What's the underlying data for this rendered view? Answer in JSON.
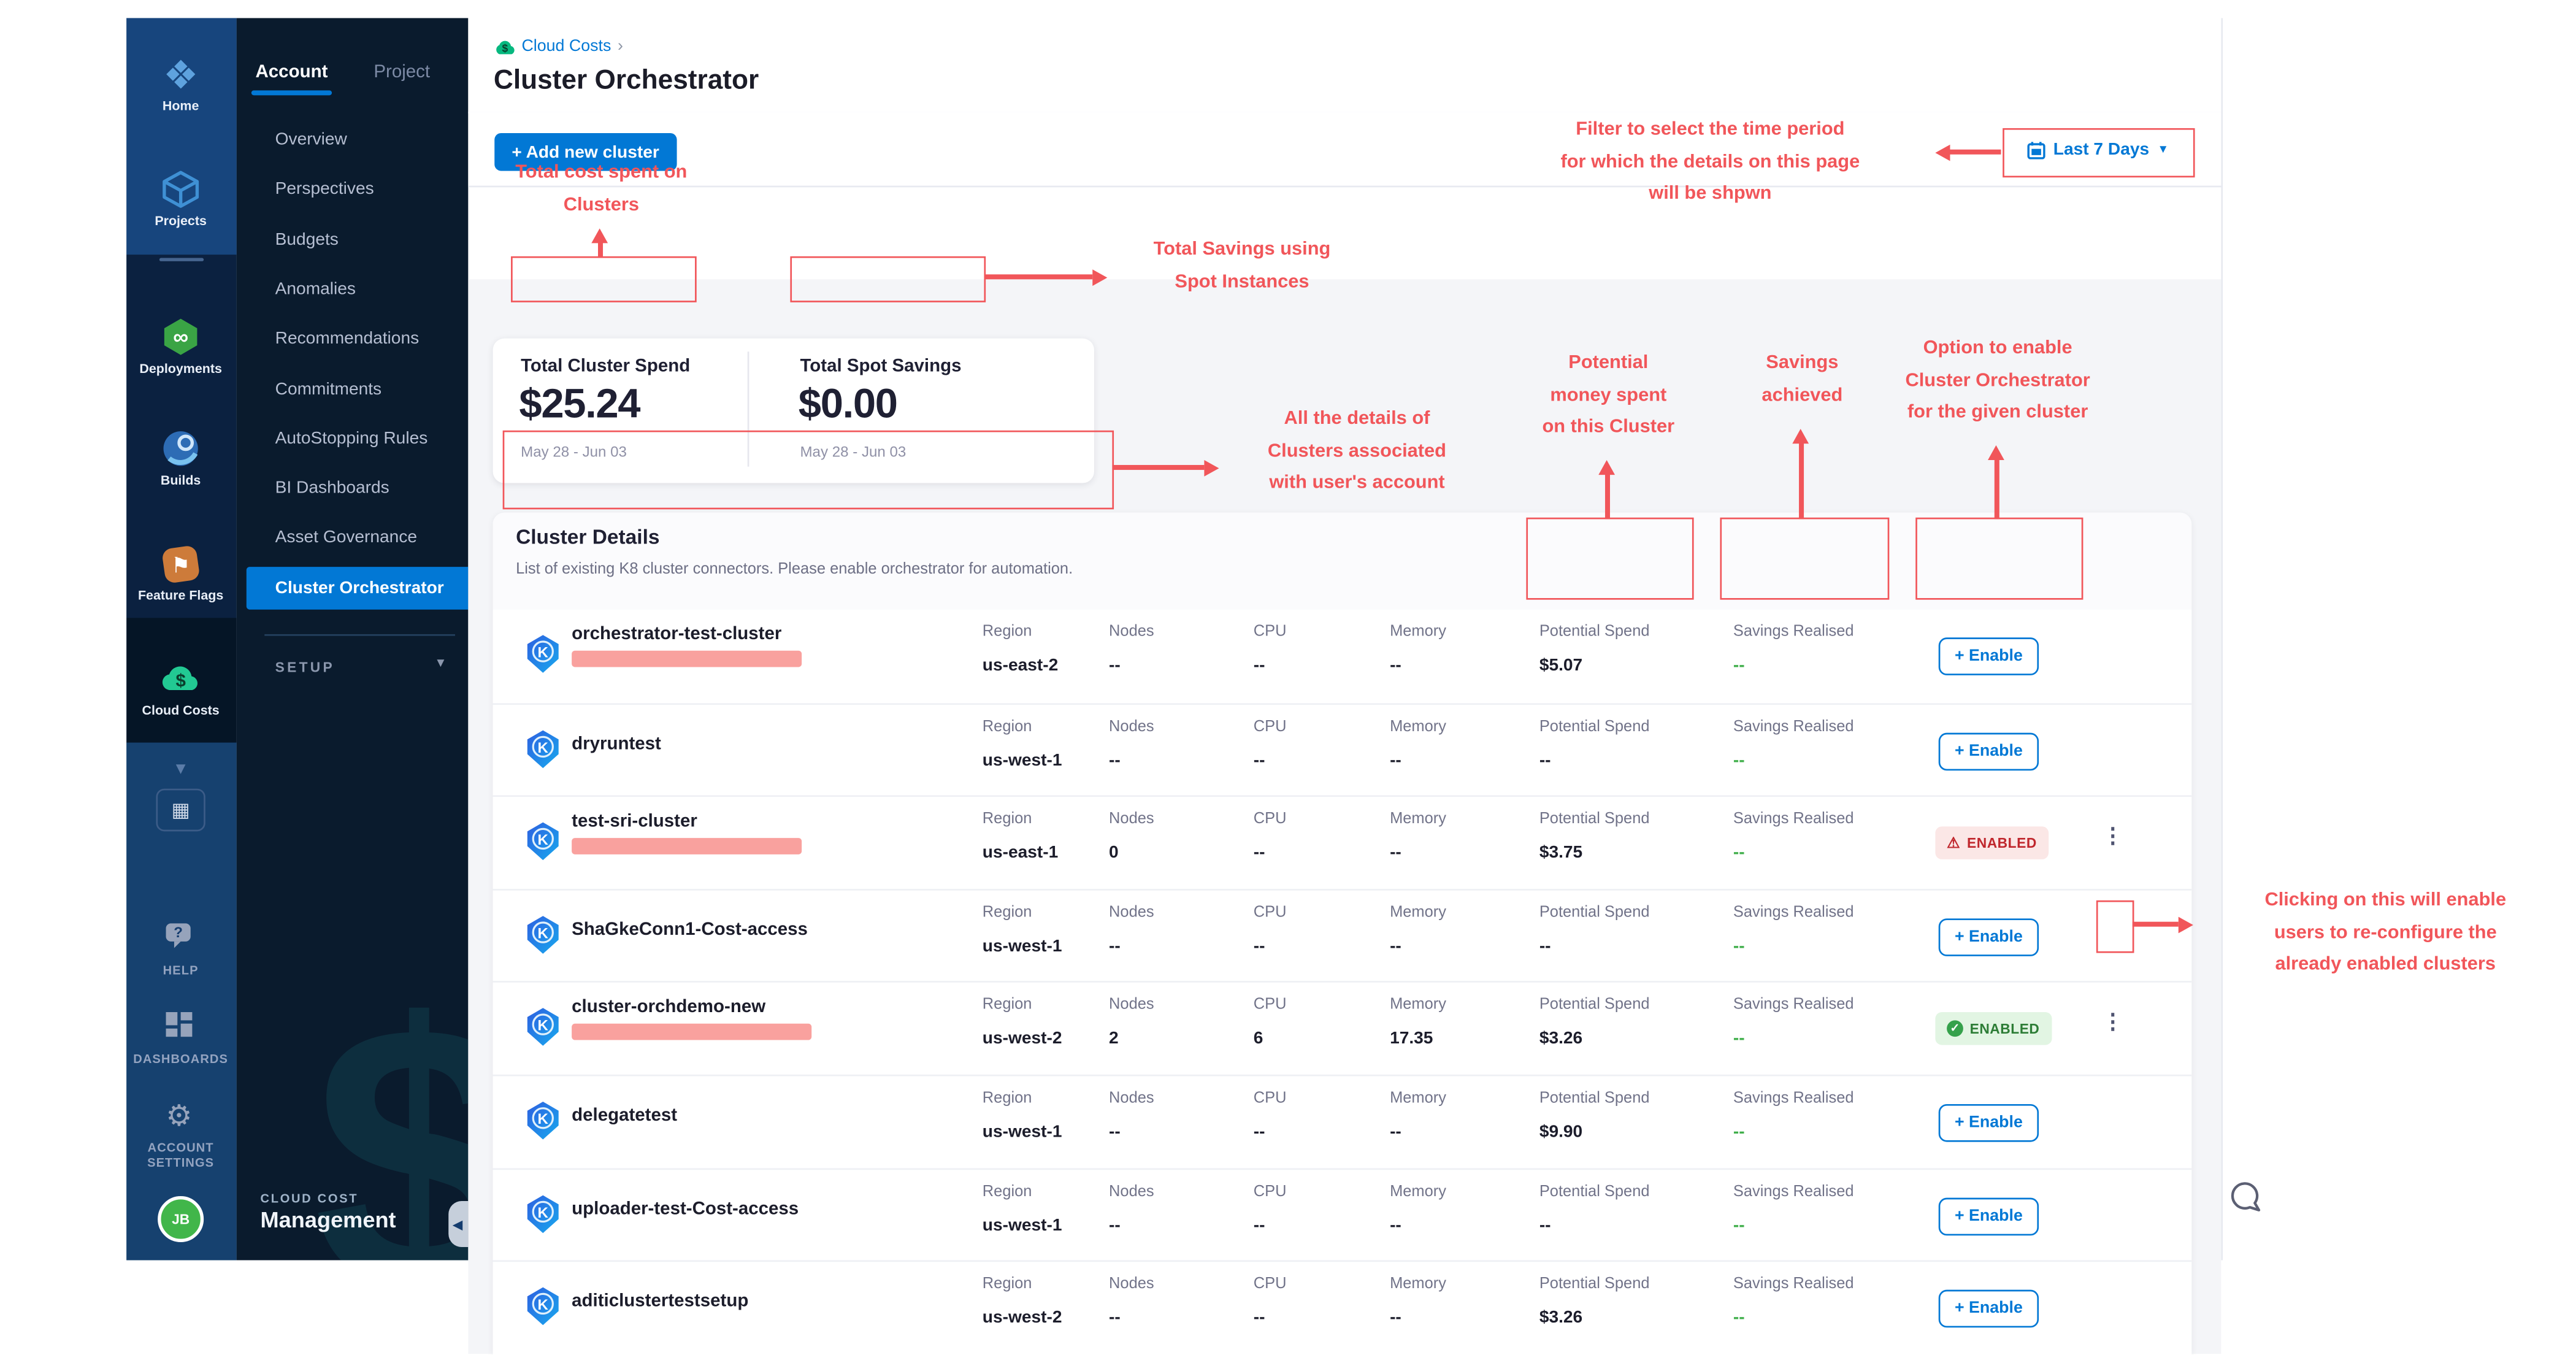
{
  "colors": {
    "accent": "#0278d5",
    "annotation_red": "#f1565a",
    "savings_green": "#3fae4a",
    "enabled_error_bg": "#fbe7e6",
    "enabled_error_text": "#c0272d",
    "enabled_ok_bg": "#e2f5e3",
    "enabled_ok_text": "#2d7d36",
    "rail_bg": "#143c6e",
    "sidebar_bg": "#0a1b2d"
  },
  "left_rail": {
    "modules": [
      {
        "icon": "harness-logo-icon",
        "label": "Home"
      },
      {
        "icon": "cube-icon",
        "label": "Projects"
      },
      {
        "icon": "infinity-hex-icon",
        "label": "Deployments"
      },
      {
        "icon": "ci-circle-icon",
        "label": "Builds"
      },
      {
        "icon": "flag-icon",
        "label": "Feature Flags"
      },
      {
        "icon": "cloud-dollar-icon",
        "label": "Cloud Costs"
      }
    ],
    "utility": [
      {
        "icon": "help-chat-icon",
        "label": "HELP"
      },
      {
        "icon": "dashboards-icon",
        "label": "DASHBOARDS"
      },
      {
        "icon": "gear-icon",
        "label": "ACCOUNT\nSETTINGS"
      }
    ],
    "avatar": "JB"
  },
  "sidebar": {
    "tabs": [
      {
        "label": "Account",
        "active": true
      },
      {
        "label": "Project",
        "active": false
      }
    ],
    "items": [
      "Overview",
      "Perspectives",
      "Budgets",
      "Anomalies",
      "Recommendations",
      "Commitments",
      "AutoStopping Rules",
      "BI Dashboards",
      "Asset Governance"
    ],
    "active_item": "Cluster Orchestrator",
    "setup_label": "SETUP",
    "footer": {
      "line1": "CLOUD COST",
      "line2": "Management"
    }
  },
  "header": {
    "breadcrumb": "Cloud Costs",
    "breadcrumb_sep": "›",
    "title": "Cluster Orchestrator"
  },
  "toolbar": {
    "add_button": "+ Add new cluster",
    "time_filter": "Last 7 Days"
  },
  "summary": {
    "cards": [
      {
        "label": "Total Cluster Spend",
        "value": "$25.24",
        "period": "May 28 - Jun 03"
      },
      {
        "label": "Total Spot Savings",
        "value": "$0.00",
        "period": "May 28 - Jun 03"
      }
    ]
  },
  "cluster_details": {
    "title": "Cluster Details",
    "subtitle": "List of existing K8 cluster connectors. Please enable orchestrator for automation."
  },
  "table": {
    "labels": {
      "region": "Region",
      "nodes": "Nodes",
      "cpu": "CPU",
      "memory": "Memory",
      "potential_spend": "Potential Spend",
      "savings_realised": "Savings Realised"
    },
    "enable_label": "+ Enable",
    "enabled_label": "ENABLED",
    "rows": [
      {
        "name": "orchestrator-test-cluster",
        "redacted": true,
        "region": "us-east-2",
        "nodes": "--",
        "cpu": "--",
        "memory": "--",
        "potential_spend": "$5.07",
        "savings_realised": "--",
        "status": "none",
        "kebab": false
      },
      {
        "name": "dryruntest",
        "redacted": false,
        "region": "us-west-1",
        "nodes": "--",
        "cpu": "--",
        "memory": "--",
        "potential_spend": "--",
        "savings_realised": "--",
        "status": "none",
        "kebab": false
      },
      {
        "name": "test-sri-cluster",
        "redacted": true,
        "region": "us-east-1",
        "nodes": "0",
        "cpu": "--",
        "memory": "--",
        "potential_spend": "$3.75",
        "savings_realised": "--",
        "status": "error",
        "kebab": true
      },
      {
        "name": "ShaGkeConn1-Cost-access",
        "redacted": false,
        "region": "us-west-1",
        "nodes": "--",
        "cpu": "--",
        "memory": "--",
        "potential_spend": "--",
        "savings_realised": "--",
        "status": "none",
        "kebab": false
      },
      {
        "name": "cluster-orchdemo-new",
        "redacted": true,
        "region": "us-west-2",
        "nodes": "2",
        "cpu": "6",
        "memory": "17.35",
        "potential_spend": "$3.26",
        "savings_realised": "--",
        "status": "ok",
        "kebab": true
      },
      {
        "name": "delegatetest",
        "redacted": false,
        "region": "us-west-1",
        "nodes": "--",
        "cpu": "--",
        "memory": "--",
        "potential_spend": "$9.90",
        "savings_realised": "--",
        "status": "none",
        "kebab": false
      },
      {
        "name": "uploader-test-Cost-access",
        "redacted": false,
        "region": "us-west-1",
        "nodes": "--",
        "cpu": "--",
        "memory": "--",
        "potential_spend": "--",
        "savings_realised": "--",
        "status": "none",
        "kebab": false
      },
      {
        "name": "aditiclustertestsetup",
        "redacted": false,
        "region": "us-west-2",
        "nodes": "--",
        "cpu": "--",
        "memory": "--",
        "potential_spend": "$3.26",
        "savings_realised": "--",
        "status": "none",
        "kebab": false
      }
    ]
  },
  "annotations": {
    "total_cost": "Total cost spent on\nClusters",
    "filter": "Filter to select the time period\nfor which the details on this page\nwill be shpwn",
    "spot": "Total Savings using\nSpot Instances",
    "details": "All the details of\nClusters associated\nwith user's account",
    "potential": "Potential\nmoney spent\non this Cluster",
    "savings": "Savings\nachieved",
    "enable_option": "Option to enable\nCluster Orchestrator\nfor the given cluster",
    "kebab": "Clicking on this will enable\nusers to re-configure the\nalready enabled clusters"
  }
}
